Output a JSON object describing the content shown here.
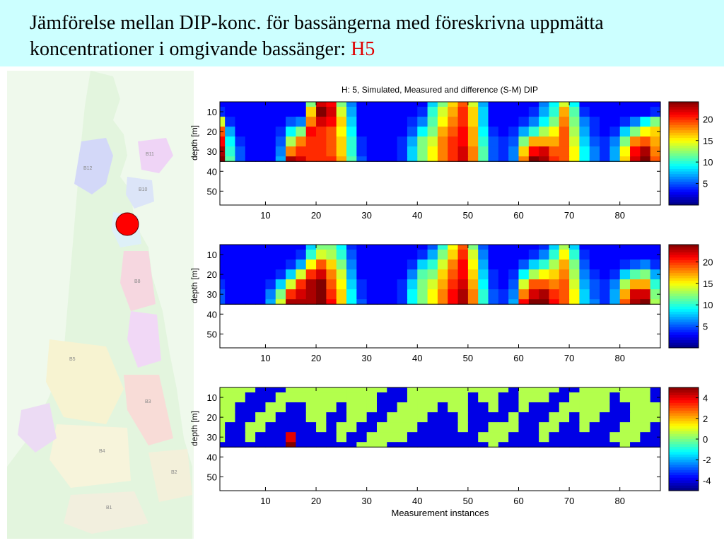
{
  "slide": {
    "title_main": "Jämförelse mellan DIP-konc. för bassängerna med föreskrivna uppmätta koncentrationer i omgivande bassänger: ",
    "title_highlight": "H5",
    "highlight_color": "#e00000",
    "header_bg": "#ccffff"
  },
  "map": {
    "basin_labels": [
      "B11",
      "B12",
      "B10",
      "B9",
      "B8",
      "B4",
      "B5",
      "B3",
      "B2",
      "B1"
    ],
    "marker_color": "#ff0000"
  },
  "chart_data": [
    {
      "type": "heatmap",
      "title": "H: 5, Simulated, Measured and difference (S-M) DIP",
      "xlabel": "",
      "ylabel": "depth [m]",
      "x_ticks": [
        10,
        20,
        30,
        40,
        50,
        60,
        70,
        80
      ],
      "y_ticks": [
        10,
        20,
        30,
        40,
        50
      ],
      "xlim": [
        1,
        88
      ],
      "ylim": [
        57,
        5
      ],
      "data_depth_max": 35,
      "colorbar_ticks": [
        5,
        10,
        15,
        20
      ],
      "colorbar_range": [
        0,
        24
      ],
      "x": [
        1,
        3,
        5,
        7,
        9,
        11,
        13,
        15,
        17,
        19,
        21,
        23,
        25,
        27,
        29,
        31,
        33,
        35,
        37,
        39,
        41,
        43,
        45,
        47,
        49,
        51,
        53,
        55,
        57,
        59,
        61,
        63,
        65,
        67,
        69,
        71,
        73,
        75,
        77,
        79,
        81,
        83,
        85,
        87
      ],
      "depths": [
        5,
        10,
        15,
        20,
        25,
        30,
        35
      ],
      "values": [
        [
          3,
          3,
          3,
          3,
          3,
          3,
          3,
          3,
          3,
          12,
          22,
          21,
          12,
          6,
          3,
          3,
          3,
          3,
          3,
          3,
          3,
          8,
          12,
          16,
          19,
          14,
          7,
          3,
          3,
          3,
          3,
          3,
          6,
          9,
          14,
          9,
          3,
          3,
          3,
          3,
          3,
          3,
          3,
          3
        ],
        [
          4,
          3,
          3,
          3,
          3,
          3,
          3,
          3,
          3,
          16,
          24,
          22,
          14,
          7,
          3,
          3,
          3,
          3,
          3,
          3,
          4,
          10,
          14,
          17,
          20,
          16,
          8,
          3,
          3,
          3,
          3,
          4,
          7,
          10,
          17,
          11,
          4,
          3,
          3,
          3,
          3,
          3,
          3,
          4
        ],
        [
          14,
          4,
          3,
          3,
          3,
          3,
          3,
          5,
          6,
          18,
          22,
          21,
          16,
          8,
          3,
          3,
          3,
          3,
          3,
          4,
          6,
          11,
          15,
          18,
          20,
          16,
          8,
          3,
          3,
          3,
          4,
          6,
          9,
          12,
          18,
          12,
          6,
          4,
          3,
          3,
          4,
          6,
          9,
          12
        ],
        [
          19,
          7,
          3,
          3,
          3,
          3,
          4,
          9,
          12,
          21,
          20,
          19,
          15,
          9,
          3,
          3,
          3,
          3,
          3,
          5,
          9,
          12,
          17,
          19,
          21,
          17,
          9,
          4,
          3,
          4,
          7,
          10,
          13,
          15,
          19,
          13,
          7,
          4,
          3,
          4,
          8,
          12,
          15,
          16
        ],
        [
          21,
          9,
          4,
          3,
          3,
          3,
          5,
          13,
          18,
          20,
          20,
          19,
          16,
          10,
          4,
          3,
          3,
          3,
          4,
          7,
          12,
          14,
          18,
          20,
          21,
          17,
          10,
          5,
          4,
          5,
          12,
          17,
          17,
          17,
          19,
          14,
          8,
          5,
          4,
          6,
          12,
          18,
          19,
          17
        ],
        [
          23,
          10,
          5,
          3,
          3,
          3,
          6,
          18,
          20,
          20,
          20,
          19,
          16,
          10,
          4,
          3,
          3,
          3,
          4,
          8,
          12,
          15,
          18,
          20,
          22,
          18,
          11,
          5,
          4,
          6,
          16,
          21,
          22,
          19,
          19,
          15,
          9,
          6,
          4,
          7,
          15,
          21,
          23,
          18
        ],
        [
          24,
          11,
          5,
          3,
          3,
          3,
          7,
          23,
          22,
          20,
          20,
          20,
          17,
          11,
          5,
          3,
          3,
          3,
          4,
          8,
          12,
          15,
          18,
          20,
          22,
          18,
          11,
          5,
          4,
          6,
          18,
          24,
          23,
          20,
          19,
          15,
          9,
          6,
          4,
          7,
          16,
          22,
          24,
          19
        ]
      ]
    },
    {
      "type": "heatmap",
      "title": "",
      "xlabel": "",
      "ylabel": "depth [m]",
      "x_ticks": [
        10,
        20,
        30,
        40,
        50,
        60,
        70,
        80
      ],
      "y_ticks": [
        10,
        20,
        30,
        40,
        50
      ],
      "xlim": [
        1,
        88
      ],
      "ylim": [
        57,
        5
      ],
      "data_depth_max": 35,
      "colorbar_ticks": [
        5,
        10,
        15,
        20
      ],
      "colorbar_range": [
        0,
        24
      ],
      "x": [
        1,
        3,
        5,
        7,
        9,
        11,
        13,
        15,
        17,
        19,
        21,
        23,
        25,
        27,
        29,
        31,
        33,
        35,
        37,
        39,
        41,
        43,
        45,
        47,
        49,
        51,
        53,
        55,
        57,
        59,
        61,
        63,
        65,
        67,
        69,
        71,
        73,
        75,
        77,
        79,
        81,
        83,
        85,
        87
      ],
      "depths": [
        5,
        10,
        15,
        20,
        25,
        30,
        35
      ],
      "values": [
        [
          3,
          3,
          3,
          3,
          3,
          3,
          3,
          3,
          3,
          8,
          12,
          12,
          9,
          4,
          3,
          3,
          3,
          3,
          3,
          3,
          3,
          5,
          10,
          15,
          19,
          12,
          5,
          3,
          3,
          3,
          3,
          3,
          4,
          8,
          13,
          8,
          3,
          3,
          3,
          3,
          3,
          3,
          3,
          3
        ],
        [
          3,
          3,
          3,
          3,
          3,
          3,
          3,
          3,
          4,
          10,
          14,
          13,
          10,
          5,
          3,
          3,
          3,
          3,
          3,
          3,
          4,
          7,
          12,
          16,
          20,
          14,
          6,
          3,
          3,
          3,
          3,
          4,
          6,
          10,
          15,
          10,
          4,
          3,
          3,
          3,
          3,
          3,
          3,
          3
        ],
        [
          3,
          3,
          3,
          3,
          3,
          3,
          3,
          4,
          7,
          15,
          19,
          16,
          12,
          6,
          3,
          3,
          3,
          3,
          3,
          4,
          8,
          10,
          14,
          18,
          21,
          15,
          7,
          3,
          3,
          3,
          5,
          8,
          10,
          13,
          17,
          12,
          5,
          3,
          3,
          3,
          4,
          5,
          6,
          4
        ],
        [
          3,
          3,
          3,
          3,
          3,
          3,
          4,
          8,
          14,
          20,
          22,
          18,
          14,
          7,
          3,
          3,
          3,
          3,
          3,
          6,
          11,
          12,
          16,
          19,
          21,
          16,
          8,
          4,
          3,
          4,
          9,
          13,
          15,
          16,
          18,
          13,
          6,
          4,
          3,
          4,
          8,
          11,
          12,
          7
        ],
        [
          4,
          3,
          3,
          3,
          3,
          4,
          8,
          14,
          20,
          23,
          24,
          19,
          15,
          8,
          4,
          3,
          3,
          3,
          4,
          8,
          12,
          14,
          17,
          20,
          22,
          17,
          9,
          4,
          3,
          5,
          14,
          19,
          19,
          18,
          19,
          14,
          7,
          5,
          4,
          6,
          13,
          17,
          17,
          10
        ],
        [
          5,
          3,
          3,
          3,
          3,
          6,
          12,
          20,
          22,
          23,
          24,
          20,
          16,
          9,
          4,
          3,
          3,
          3,
          4,
          9,
          12,
          15,
          18,
          21,
          23,
          18,
          10,
          5,
          4,
          6,
          18,
          22,
          23,
          20,
          19,
          15,
          8,
          5,
          4,
          7,
          17,
          22,
          22,
          12
        ],
        [
          5,
          3,
          3,
          3,
          3,
          7,
          14,
          23,
          23,
          23,
          24,
          21,
          16,
          9,
          5,
          3,
          3,
          3,
          4,
          9,
          12,
          15,
          18,
          21,
          23,
          18,
          10,
          5,
          4,
          7,
          21,
          24,
          24,
          21,
          19,
          15,
          8,
          6,
          4,
          7,
          19,
          23,
          24,
          13
        ]
      ]
    },
    {
      "type": "heatmap",
      "title": "",
      "xlabel": "Measurement instances",
      "ylabel": "depth [m]",
      "x_ticks": [
        10,
        20,
        30,
        40,
        50,
        60,
        70,
        80
      ],
      "y_ticks": [
        10,
        20,
        30,
        40,
        50
      ],
      "xlim": [
        1,
        88
      ],
      "ylim": [
        57,
        5
      ],
      "data_depth_max": 35,
      "colorbar_ticks": [
        -4,
        -2,
        0,
        2,
        4
      ],
      "colorbar_range": [
        -5,
        5
      ],
      "x": [
        1,
        3,
        5,
        7,
        9,
        11,
        13,
        15,
        17,
        19,
        21,
        23,
        25,
        27,
        29,
        31,
        33,
        35,
        37,
        39,
        41,
        43,
        45,
        47,
        49,
        51,
        53,
        55,
        57,
        59,
        61,
        63,
        65,
        67,
        69,
        71,
        73,
        75,
        77,
        79,
        81,
        83,
        85,
        87
      ],
      "depths": [
        5,
        10,
        15,
        20,
        25,
        30,
        35
      ],
      "values": [
        [
          0.5,
          0.5,
          0.5,
          0.5,
          -4,
          -4,
          -4,
          0.5,
          0.5,
          0.5,
          0.5,
          0.5,
          0.5,
          0.5,
          0.5,
          0.5,
          0.5,
          -4,
          -4,
          0.5,
          0.5,
          0.5,
          0.5,
          0.5,
          0.5,
          0.5,
          0.5,
          0.5,
          0.5,
          -4,
          0.5,
          0.5,
          0.5,
          0.5,
          -4,
          -4,
          0.5,
          0.5,
          0.5,
          0.5,
          0.5,
          0.5,
          0.5,
          -4
        ],
        [
          0.5,
          0.5,
          0.5,
          -4,
          -4,
          -4,
          0.5,
          0.5,
          0.5,
          0.5,
          0.5,
          0.5,
          0.5,
          0.5,
          0.5,
          0.5,
          -4,
          -4,
          -4,
          0.5,
          0.5,
          0.5,
          0.5,
          0.5,
          0.5,
          -4,
          0.5,
          0.5,
          -4,
          -4,
          0.5,
          0.5,
          0.5,
          -4,
          -4,
          0.5,
          0.5,
          0.5,
          0.5,
          -4,
          0.5,
          0.5,
          0.5,
          -4
        ],
        [
          0.5,
          0.5,
          -4,
          -4,
          -4,
          0.5,
          0.5,
          -4,
          -4,
          0.5,
          0.5,
          0.5,
          -4,
          0.5,
          0.5,
          0.5,
          -4,
          -4,
          0.5,
          0.5,
          0.5,
          0.5,
          -4,
          0.5,
          0.5,
          -4,
          -4,
          0.5,
          -4,
          -4,
          0.5,
          -4,
          -4,
          -4,
          0.5,
          0.5,
          0.5,
          0.5,
          0.5,
          -4,
          -4,
          0.5,
          0.5,
          0.5
        ],
        [
          0.5,
          0.5,
          -4,
          -4,
          0.5,
          0.5,
          -4,
          -4,
          -4,
          0.5,
          0.5,
          -4,
          -4,
          0.5,
          0.5,
          -4,
          -4,
          0.5,
          0.5,
          0.5,
          0.5,
          -4,
          -4,
          -4,
          0.5,
          -4,
          -4,
          -4,
          -4,
          0.5,
          -4,
          -4,
          -4,
          0.5,
          0.5,
          -4,
          0.5,
          0.5,
          -4,
          -4,
          -4,
          0.5,
          0.5,
          0.5
        ],
        [
          0.5,
          -4,
          -4,
          0.5,
          0.5,
          -4,
          -4,
          -4,
          -4,
          -4,
          0.5,
          -4,
          0.5,
          0.5,
          -4,
          -4,
          0.5,
          0.5,
          0.5,
          0.5,
          -4,
          -4,
          -4,
          -4,
          0.5,
          -4,
          -4,
          0.5,
          0.5,
          0.5,
          -4,
          -4,
          0.5,
          0.5,
          -4,
          -4,
          0.5,
          -4,
          -4,
          -4,
          0.5,
          0.5,
          0.5,
          -4
        ],
        [
          0.5,
          -4,
          -4,
          0.5,
          -4,
          -4,
          -4,
          4,
          -4,
          -4,
          -4,
          -4,
          0.5,
          -4,
          -4,
          0.5,
          0.5,
          0.5,
          0.5,
          -4,
          -4,
          -4,
          -4,
          -4,
          -4,
          -4,
          0.5,
          0.5,
          0.5,
          -4,
          -4,
          -4,
          0.5,
          -4,
          -4,
          -4,
          -4,
          -4,
          -4,
          0.5,
          0.5,
          0.5,
          -4,
          -4
        ],
        [
          -4,
          -4,
          -4,
          -4,
          -4,
          -4,
          -4,
          5,
          -4,
          -4,
          -4,
          -4,
          -4,
          -4,
          0.5,
          0.5,
          0.5,
          -4,
          -4,
          -4,
          -4,
          -4,
          -4,
          -4,
          -4,
          -4,
          -4,
          0.5,
          -4,
          -4,
          -4,
          -4,
          -4,
          -4,
          -4,
          -4,
          -4,
          -4,
          -4,
          -4,
          0.5,
          -4,
          -4,
          -4
        ]
      ]
    }
  ]
}
